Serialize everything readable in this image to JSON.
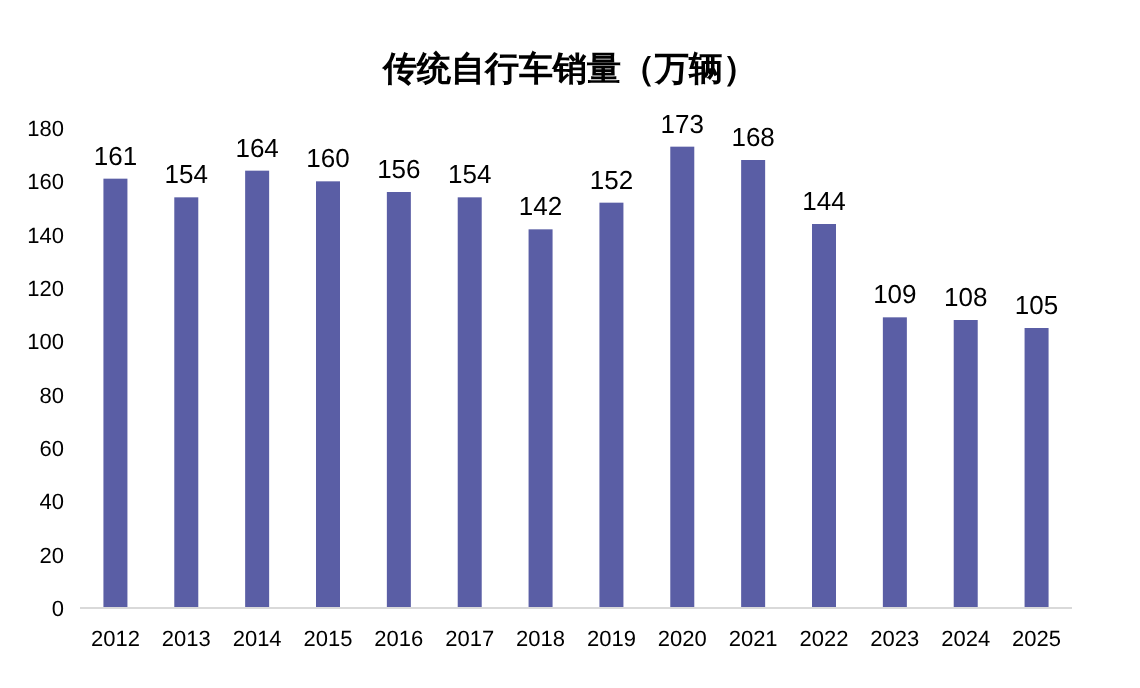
{
  "chart_data": {
    "type": "bar",
    "title": "传统自行车销量（万辆）",
    "categories": [
      "2012",
      "2013",
      "2014",
      "2015",
      "2016",
      "2017",
      "2018",
      "2019",
      "2020",
      "2021",
      "2022",
      "2023",
      "2024",
      "2025"
    ],
    "values": [
      161,
      154,
      164,
      160,
      156,
      154,
      142,
      152,
      173,
      168,
      144,
      109,
      108,
      105
    ],
    "color": "#5a5ea5",
    "ylim": [
      0,
      180
    ],
    "yticks": [
      0,
      20,
      40,
      60,
      80,
      100,
      120,
      140,
      160,
      180
    ],
    "data_labels": true
  }
}
